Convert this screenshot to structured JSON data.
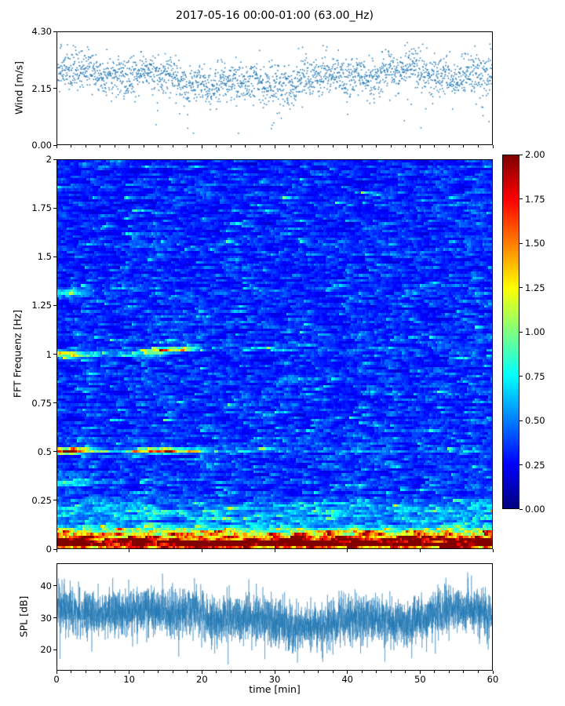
{
  "title": "2017-05-16 00:00-01:00 (63.00_Hz)",
  "colors": {
    "marker": "#1f77b4",
    "spl_line": "#1f77b4",
    "axis": "#000000",
    "background": "#ffffff"
  },
  "chart_data": [
    {
      "type": "scatter",
      "name": "wind-speed",
      "ylabel": "Wind [m/s]",
      "ylim": [
        0.0,
        4.3
      ],
      "yticks": [
        4.3,
        2.15,
        0.0
      ],
      "ytick_labels": [
        "4.30",
        "2.15",
        "0.00"
      ],
      "xlim": [
        0,
        60
      ],
      "marker_color": "#1f77b4",
      "n_points": 2200,
      "mean": 2.55,
      "std": 0.38,
      "value_range": [
        0.6,
        4.3
      ],
      "description": "Dense wind-speed scatter vs time, ~2.5 m/s average, fluctuating band 1.5-3.5 with sparse dips to ~0.6 and peaks to ~4.3"
    },
    {
      "type": "heatmap",
      "name": "fft-spectrogram",
      "ylabel": "FFT Frequenz [Hz]",
      "ylim": [
        0,
        2
      ],
      "yticks": [
        2,
        1.75,
        1.5,
        1.25,
        1,
        0.75,
        0.5,
        0.25,
        0
      ],
      "ytick_labels": [
        "2",
        "1.75",
        "1.5",
        "1.25",
        "1",
        "0.75",
        "0.5",
        "0.25",
        "0"
      ],
      "xlim": [
        0,
        60
      ],
      "colormap": "jet",
      "clim": [
        0,
        2
      ],
      "colorbar_ticks": [
        2.0,
        1.75,
        1.5,
        1.25,
        1.0,
        0.75,
        0.5,
        0.25,
        0.0
      ],
      "colorbar_tick_labels": [
        "2.00",
        "1.75",
        "1.50",
        "1.25",
        "1.00",
        "0.75",
        "0.50",
        "0.25",
        "0.00"
      ],
      "background_level": 0.27,
      "features": [
        {
          "freq_hz": 0.02,
          "sigma_hz": 0.028,
          "level": 1.9,
          "time_min": [
            0,
            60
          ],
          "note": "continuous red band at lowest frequencies"
        },
        {
          "freq_hz": 0.07,
          "sigma_hz": 0.035,
          "level": 0.85,
          "time_min": [
            0,
            60
          ],
          "note": "orange/yellow band just above bottom"
        },
        {
          "freq_hz": 0.18,
          "sigma_hz": 0.06,
          "level": 0.25,
          "time_min": [
            0,
            60
          ],
          "note": "slightly elevated green/cyan region"
        },
        {
          "freq_hz": 0.5,
          "sigma_hz": 0.013,
          "level": 1.6,
          "time_min": [
            0,
            22
          ],
          "note": "strong narrowband line, red/yellow, fades after ~22 min"
        },
        {
          "freq_hz": 1.0,
          "sigma_hz": 0.015,
          "level": 0.95,
          "time_min": [
            0,
            20
          ],
          "freq_drift_to": 1.03,
          "note": "narrowband line drifting from ~0.98 to ~1.03 Hz, gone after ~20 min"
        },
        {
          "freq_hz": 0.33,
          "sigma_hz": 0.015,
          "level": 0.55,
          "time_min": [
            0,
            6
          ],
          "note": "short cyan streak early"
        },
        {
          "freq_hz": 1.32,
          "sigma_hz": 0.015,
          "level": 0.45,
          "time_min": [
            0,
            5
          ],
          "note": "short cyan streak early"
        }
      ]
    },
    {
      "type": "line",
      "name": "spl",
      "ylabel": "SPL [dB]",
      "ylim": [
        13.5,
        47
      ],
      "yticks": [
        40,
        30,
        20
      ],
      "ytick_labels": [
        "40",
        "30",
        "20"
      ],
      "xlabel": "time [min]",
      "xlim": [
        0,
        60
      ],
      "xticks": [
        0,
        10,
        20,
        30,
        40,
        50,
        60
      ],
      "xtick_labels": [
        "0",
        "10",
        "20",
        "30",
        "40",
        "50",
        "60"
      ],
      "line_color": "#1f77b4",
      "mean": 30,
      "std": 4,
      "value_range": [
        15,
        45
      ],
      "description": "Dense noisy SPL trace ~30 dB, band roughly 20-42 dB, broad bump to ~44 near t=19 min"
    }
  ]
}
